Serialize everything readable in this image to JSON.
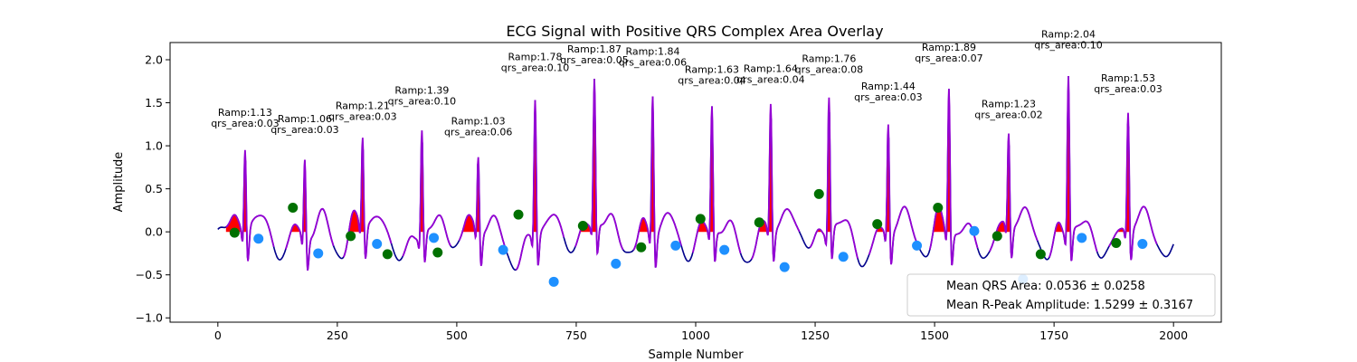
{
  "chart_data": {
    "type": "line",
    "title": "ECG Signal with Positive QRS Complex Area Overlay",
    "xlabel": "Sample Number",
    "ylabel": "Amplitude",
    "xlim": [
      -100,
      2100
    ],
    "ylim": [
      -1.05,
      2.2
    ],
    "xticks": [
      0,
      250,
      500,
      750,
      1000,
      1250,
      1500,
      1750,
      2000
    ],
    "xtick_labels": [
      "0",
      "250",
      "500",
      "750",
      "1000",
      "1250",
      "1500",
      "1750",
      "2000"
    ],
    "yticks": [
      -1.0,
      -0.5,
      0.0,
      0.5,
      1.0,
      1.5,
      2.0
    ],
    "ytick_labels": [
      "−1.0",
      "−0.5",
      "0.0",
      "0.5",
      "1.0",
      "1.5",
      "2.0"
    ],
    "grid": false,
    "colors": {
      "signal": "#00008b",
      "overlay": "#9400d3",
      "area_fill": "#ff0000",
      "onset_marker": "#007000",
      "offset_marker": "#1e90ff"
    },
    "beats": [
      {
        "r_x": 57,
        "r_amp": 1.13,
        "qrs_area": "0.03",
        "onset": [
          35,
          -0.01
        ],
        "offset": [
          85,
          -0.08
        ],
        "onset_color": "green",
        "offset_color": "blue"
      },
      {
        "r_x": 182,
        "r_amp": 1.06,
        "qrs_area": "0.03",
        "onset": [
          157,
          0.28
        ],
        "offset": [
          210,
          -0.25
        ],
        "onset_color": "green",
        "offset_color": "blue"
      },
      {
        "r_x": 303,
        "r_amp": 1.21,
        "qrs_area": "0.03",
        "onset": [
          278,
          -0.05
        ],
        "offset": [
          333,
          -0.14
        ],
        "onset_color": "green",
        "offset_color": "blue"
      },
      {
        "r_x": 427,
        "r_amp": 1.39,
        "qrs_area": "0.10",
        "onset": [
          355,
          -0.26
        ],
        "offset": [
          452,
          -0.07
        ],
        "onset_color": "green",
        "offset_color": "blue"
      },
      {
        "r_x": 545,
        "r_amp": 1.03,
        "qrs_area": "0.06",
        "onset": [
          460,
          -0.24
        ],
        "offset": [
          597,
          -0.21
        ],
        "onset_color": "green",
        "offset_color": "blue"
      },
      {
        "r_x": 664,
        "r_amp": 1.78,
        "qrs_area": "0.10",
        "onset": [
          629,
          0.2
        ],
        "offset": [
          703,
          -0.58
        ],
        "onset_color": "green",
        "offset_color": "blue"
      },
      {
        "r_x": 788,
        "r_amp": 1.87,
        "qrs_area": "0.05",
        "onset": [
          764,
          0.07
        ],
        "offset": [
          833,
          -0.37
        ],
        "onset_color": "green",
        "offset_color": "blue"
      },
      {
        "r_x": 910,
        "r_amp": 1.84,
        "qrs_area": "0.06",
        "onset": [
          886,
          -0.18
        ],
        "offset": [
          958,
          -0.16
        ],
        "onset_color": "green",
        "offset_color": "blue"
      },
      {
        "r_x": 1034,
        "r_amp": 1.63,
        "qrs_area": "0.04",
        "onset": [
          1010,
          0.15
        ],
        "offset": [
          1060,
          -0.21
        ],
        "onset_color": "green",
        "offset_color": "blue"
      },
      {
        "r_x": 1157,
        "r_amp": 1.64,
        "qrs_area": "0.04",
        "onset": [
          1133,
          0.11
        ],
        "offset": [
          1186,
          -0.41
        ],
        "onset_color": "green",
        "offset_color": "blue"
      },
      {
        "r_x": 1279,
        "r_amp": 1.76,
        "qrs_area": "0.08",
        "onset": [
          1258,
          0.44
        ],
        "offset": [
          1309,
          -0.29
        ],
        "onset_color": "green",
        "offset_color": "blue"
      },
      {
        "r_x": 1403,
        "r_amp": 1.44,
        "qrs_area": "0.03",
        "onset": [
          1380,
          0.09
        ],
        "offset": [
          1463,
          -0.16
        ],
        "onset_color": "green",
        "offset_color": "blue"
      },
      {
        "r_x": 1530,
        "r_amp": 1.89,
        "qrs_area": "0.07",
        "onset": [
          1507,
          0.28
        ],
        "offset": [
          1583,
          0.01
        ],
        "onset_color": "green",
        "offset_color": "blue"
      },
      {
        "r_x": 1655,
        "r_amp": 1.23,
        "qrs_area": "0.02",
        "onset": [
          1631,
          -0.05
        ],
        "offset": [
          1685,
          -0.55
        ],
        "onset_color": "green",
        "offset_color": "blue"
      },
      {
        "r_x": 1780,
        "r_amp": 2.04,
        "qrs_area": "0.10",
        "onset": [
          1722,
          -0.26
        ],
        "offset": [
          1808,
          -0.07
        ],
        "onset_color": "green",
        "offset_color": "blue"
      },
      {
        "r_x": 1905,
        "r_amp": 1.53,
        "qrs_area": "0.03",
        "onset": [
          1880,
          -0.13
        ],
        "offset": [
          1935,
          -0.14
        ],
        "onset_color": "green",
        "offset_color": "blue"
      }
    ],
    "legend": {
      "placement": "lower right",
      "entries": [
        "Mean QRS Area: 0.0536 ± 0.0258",
        "Mean R-Peak Amplitude: 1.5299 ± 0.3167"
      ]
    }
  }
}
